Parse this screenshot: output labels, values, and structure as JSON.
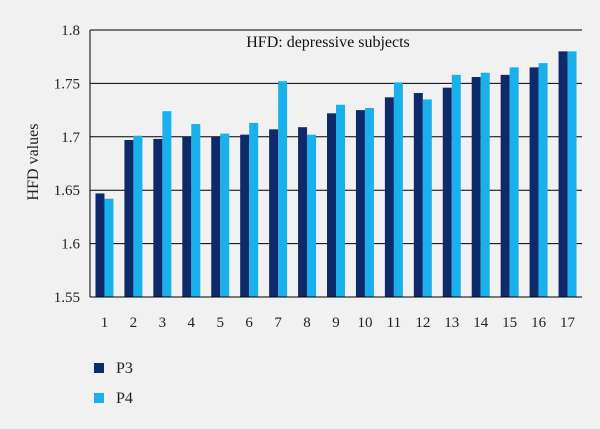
{
  "chart_data": {
    "type": "bar",
    "title": "HFD: depressive subjects",
    "ylabel": "HFD values",
    "xlabel": "",
    "ylim": [
      1.55,
      1.8
    ],
    "yticks": [
      1.55,
      1.6,
      1.65,
      1.7,
      1.75,
      1.8
    ],
    "ytick_labels": [
      "1.55",
      "1.6",
      "1.65",
      "1.7",
      "1.75",
      "1.8"
    ],
    "grid": true,
    "legend_position": "bottom-left",
    "categories": [
      "1",
      "2",
      "3",
      "4",
      "5",
      "6",
      "7",
      "8",
      "9",
      "10",
      "11",
      "12",
      "13",
      "14",
      "15",
      "16",
      "17"
    ],
    "series": [
      {
        "name": "P3",
        "color": "#0f2a6b",
        "values": [
          1.647,
          1.697,
          1.698,
          1.7,
          1.7,
          1.702,
          1.707,
          1.709,
          1.722,
          1.725,
          1.737,
          1.741,
          1.746,
          1.756,
          1.758,
          1.765,
          1.78
        ]
      },
      {
        "name": "P4",
        "color": "#1ab0ec",
        "values": [
          1.642,
          1.701,
          1.724,
          1.712,
          1.703,
          1.713,
          1.752,
          1.702,
          1.73,
          1.727,
          1.751,
          1.735,
          1.758,
          1.76,
          1.765,
          1.769,
          1.78
        ]
      }
    ]
  }
}
